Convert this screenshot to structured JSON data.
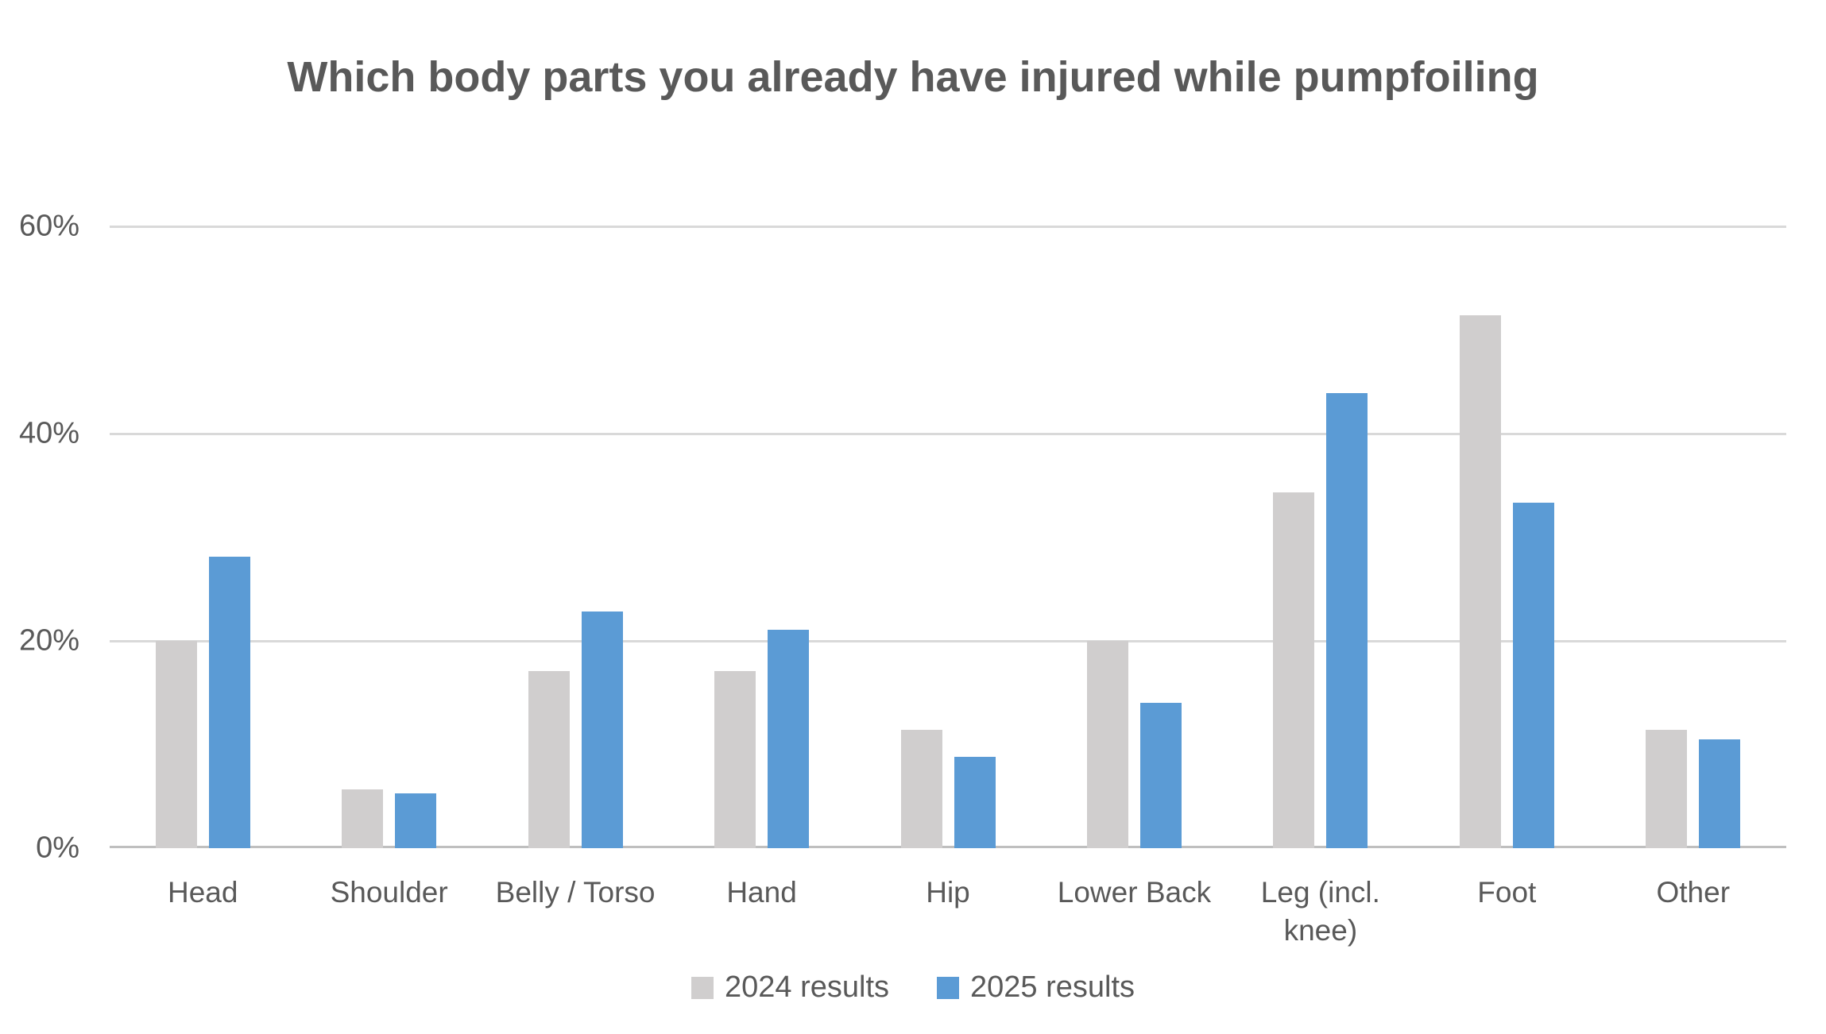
{
  "chart_data": {
    "type": "bar",
    "title": "Which body parts you already have injured while pumpfoiling",
    "categories": [
      "Head",
      "Shoulder",
      "Belly / Torso",
      "Hand",
      "Hip",
      "Lower Back",
      "Leg (incl. knee)",
      "Foot",
      "Other"
    ],
    "series": [
      {
        "name": "2024 results",
        "color": "#D0CECE",
        "values": [
          20.0,
          5.7,
          17.1,
          17.1,
          11.4,
          20.0,
          34.3,
          51.4,
          11.4
        ]
      },
      {
        "name": "2025 results",
        "color": "#5B9BD5",
        "values": [
          28.1,
          5.3,
          22.8,
          21.1,
          8.8,
          14.0,
          43.9,
          33.3,
          10.5
        ]
      }
    ],
    "xlabel": "",
    "ylabel": "",
    "ylim": [
      0,
      60
    ],
    "yticks": [
      {
        "value": 0,
        "label": "0%"
      },
      {
        "value": 20,
        "label": "20%"
      },
      {
        "value": 40,
        "label": "40%"
      },
      {
        "value": 60,
        "label": "60%"
      }
    ],
    "grid": true,
    "legend_position": "bottom"
  },
  "style": {
    "background_color": "#FFFFFF",
    "text_color": "#595959",
    "gridline_color": "#D9D9D9",
    "axis_line_color": "#BFBFBF",
    "series_2024_color": "#D0CECE",
    "series_2025_color": "#5B9BD5"
  }
}
